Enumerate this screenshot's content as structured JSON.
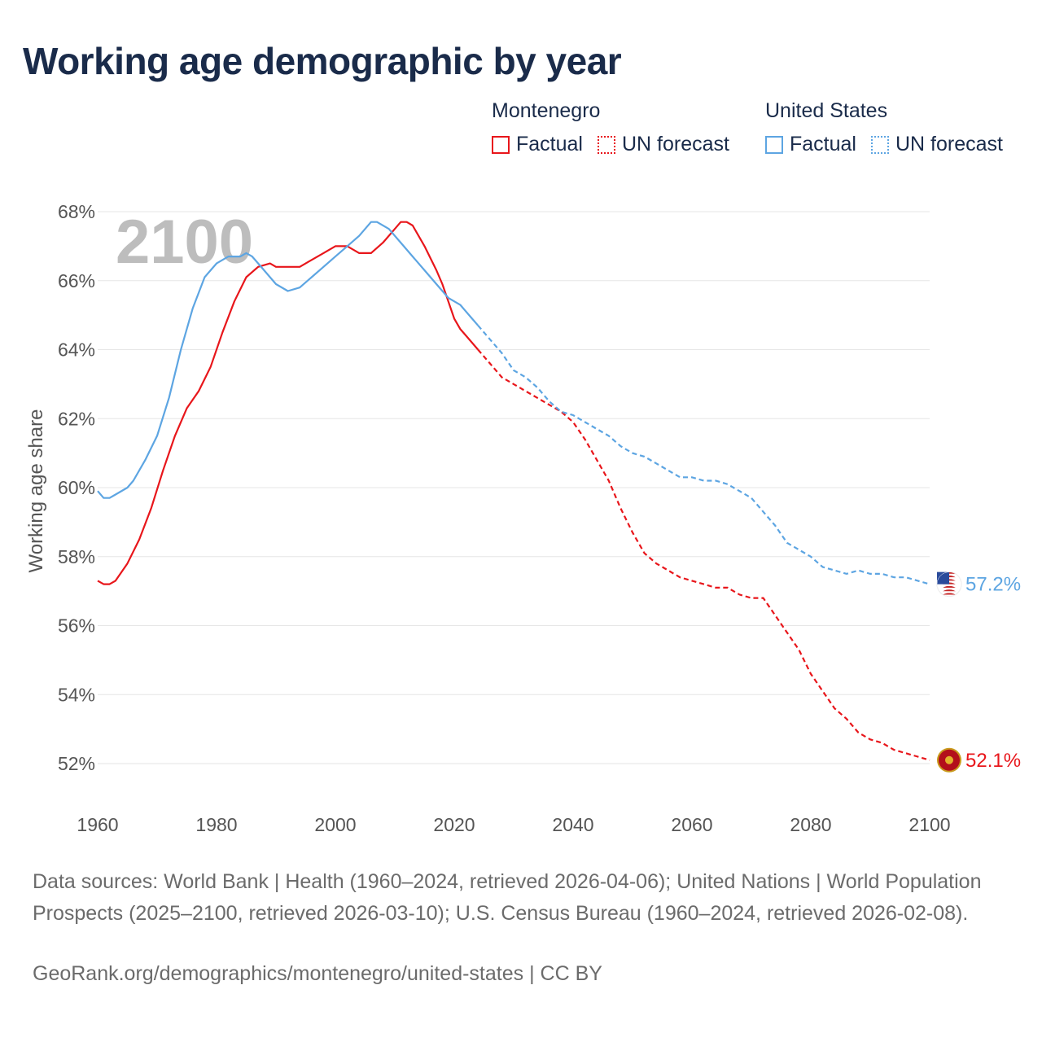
{
  "title": "Working age demographic by year",
  "legend": {
    "groups": [
      {
        "name": "Montenegro",
        "factual_label": "Factual",
        "forecast_label": "UN forecast",
        "color": "#e8161b"
      },
      {
        "name": "United States",
        "factual_label": "Factual",
        "forecast_label": "UN forecast",
        "color": "#5da5e2"
      }
    ]
  },
  "chart_data": {
    "type": "line",
    "title": "Working age demographic by year",
    "xlabel": "",
    "ylabel": "Working age share",
    "xlim": [
      1960,
      2100
    ],
    "ylim": [
      51,
      68.5
    ],
    "x_ticks": [
      1960,
      1980,
      2000,
      2020,
      2040,
      2060,
      2080,
      2100
    ],
    "x_tick_labels": [
      "1960",
      "1980",
      "2000",
      "2020",
      "2040",
      "2060",
      "2080",
      "2100"
    ],
    "y_ticks": [
      52,
      54,
      56,
      58,
      60,
      62,
      64,
      66,
      68
    ],
    "y_tick_labels": [
      "52%",
      "54%",
      "56%",
      "58%",
      "60%",
      "62%",
      "64%",
      "66%",
      "68%"
    ],
    "year_watermark": "2100",
    "grid": true,
    "series": [
      {
        "name": "Montenegro",
        "color": "#e8161b",
        "end_label": "52.1%",
        "factual": [
          [
            1960,
            57.3
          ],
          [
            1961,
            57.2
          ],
          [
            1962,
            57.2
          ],
          [
            1963,
            57.3
          ],
          [
            1965,
            57.8
          ],
          [
            1967,
            58.5
          ],
          [
            1969,
            59.4
          ],
          [
            1971,
            60.5
          ],
          [
            1973,
            61.5
          ],
          [
            1975,
            62.3
          ],
          [
            1977,
            62.8
          ],
          [
            1979,
            63.5
          ],
          [
            1981,
            64.5
          ],
          [
            1983,
            65.4
          ],
          [
            1985,
            66.1
          ],
          [
            1987,
            66.4
          ],
          [
            1989,
            66.5
          ],
          [
            1990,
            66.4
          ],
          [
            1992,
            66.4
          ],
          [
            1994,
            66.4
          ],
          [
            1996,
            66.6
          ],
          [
            1998,
            66.8
          ],
          [
            2000,
            67.0
          ],
          [
            2002,
            67.0
          ],
          [
            2004,
            66.8
          ],
          [
            2006,
            66.8
          ],
          [
            2008,
            67.1
          ],
          [
            2010,
            67.5
          ],
          [
            2011,
            67.7
          ],
          [
            2012,
            67.7
          ],
          [
            2013,
            67.6
          ],
          [
            2015,
            67.0
          ],
          [
            2017,
            66.3
          ],
          [
            2018,
            65.9
          ],
          [
            2019,
            65.4
          ],
          [
            2020,
            64.9
          ],
          [
            2021,
            64.6
          ],
          [
            2022,
            64.4
          ],
          [
            2023,
            64.2
          ],
          [
            2024,
            64.0
          ]
        ],
        "forecast": [
          [
            2024,
            64.0
          ],
          [
            2026,
            63.6
          ],
          [
            2028,
            63.2
          ],
          [
            2030,
            63.0
          ],
          [
            2032,
            62.8
          ],
          [
            2034,
            62.6
          ],
          [
            2036,
            62.4
          ],
          [
            2038,
            62.2
          ],
          [
            2040,
            61.9
          ],
          [
            2042,
            61.4
          ],
          [
            2044,
            60.8
          ],
          [
            2046,
            60.2
          ],
          [
            2048,
            59.4
          ],
          [
            2050,
            58.7
          ],
          [
            2052,
            58.1
          ],
          [
            2054,
            57.8
          ],
          [
            2056,
            57.6
          ],
          [
            2058,
            57.4
          ],
          [
            2060,
            57.3
          ],
          [
            2062,
            57.2
          ],
          [
            2064,
            57.1
          ],
          [
            2066,
            57.1
          ],
          [
            2068,
            56.9
          ],
          [
            2070,
            56.8
          ],
          [
            2072,
            56.8
          ],
          [
            2074,
            56.3
          ],
          [
            2076,
            55.8
          ],
          [
            2078,
            55.3
          ],
          [
            2080,
            54.6
          ],
          [
            2082,
            54.1
          ],
          [
            2084,
            53.6
          ],
          [
            2086,
            53.3
          ],
          [
            2088,
            52.9
          ],
          [
            2090,
            52.7
          ],
          [
            2092,
            52.6
          ],
          [
            2094,
            52.4
          ],
          [
            2096,
            52.3
          ],
          [
            2098,
            52.2
          ],
          [
            2100,
            52.1
          ]
        ]
      },
      {
        "name": "United States",
        "color": "#5da5e2",
        "end_label": "57.2%",
        "factual": [
          [
            1960,
            59.9
          ],
          [
            1961,
            59.7
          ],
          [
            1962,
            59.7
          ],
          [
            1963,
            59.8
          ],
          [
            1965,
            60.0
          ],
          [
            1966,
            60.2
          ],
          [
            1968,
            60.8
          ],
          [
            1970,
            61.5
          ],
          [
            1972,
            62.6
          ],
          [
            1974,
            64.0
          ],
          [
            1976,
            65.2
          ],
          [
            1978,
            66.1
          ],
          [
            1980,
            66.5
          ],
          [
            1982,
            66.7
          ],
          [
            1984,
            66.7
          ],
          [
            1985,
            66.8
          ],
          [
            1986,
            66.7
          ],
          [
            1988,
            66.3
          ],
          [
            1990,
            65.9
          ],
          [
            1992,
            65.7
          ],
          [
            1994,
            65.8
          ],
          [
            1996,
            66.1
          ],
          [
            1998,
            66.4
          ],
          [
            2000,
            66.7
          ],
          [
            2002,
            67.0
          ],
          [
            2004,
            67.3
          ],
          [
            2006,
            67.7
          ],
          [
            2007,
            67.7
          ],
          [
            2009,
            67.5
          ],
          [
            2011,
            67.1
          ],
          [
            2013,
            66.7
          ],
          [
            2015,
            66.3
          ],
          [
            2017,
            65.9
          ],
          [
            2019,
            65.5
          ],
          [
            2021,
            65.3
          ],
          [
            2023,
            64.9
          ],
          [
            2024,
            64.7
          ]
        ],
        "forecast": [
          [
            2024,
            64.7
          ],
          [
            2026,
            64.3
          ],
          [
            2028,
            63.9
          ],
          [
            2030,
            63.4
          ],
          [
            2032,
            63.2
          ],
          [
            2034,
            62.9
          ],
          [
            2036,
            62.5
          ],
          [
            2038,
            62.2
          ],
          [
            2040,
            62.1
          ],
          [
            2042,
            61.9
          ],
          [
            2044,
            61.7
          ],
          [
            2046,
            61.5
          ],
          [
            2048,
            61.2
          ],
          [
            2050,
            61.0
          ],
          [
            2052,
            60.9
          ],
          [
            2054,
            60.7
          ],
          [
            2056,
            60.5
          ],
          [
            2058,
            60.3
          ],
          [
            2060,
            60.3
          ],
          [
            2062,
            60.2
          ],
          [
            2064,
            60.2
          ],
          [
            2066,
            60.1
          ],
          [
            2068,
            59.9
          ],
          [
            2070,
            59.7
          ],
          [
            2072,
            59.3
          ],
          [
            2074,
            58.9
          ],
          [
            2076,
            58.4
          ],
          [
            2078,
            58.2
          ],
          [
            2080,
            58.0
          ],
          [
            2082,
            57.7
          ],
          [
            2084,
            57.6
          ],
          [
            2086,
            57.5
          ],
          [
            2088,
            57.6
          ],
          [
            2090,
            57.5
          ],
          [
            2092,
            57.5
          ],
          [
            2094,
            57.4
          ],
          [
            2096,
            57.4
          ],
          [
            2098,
            57.3
          ],
          [
            2100,
            57.2
          ]
        ]
      }
    ]
  },
  "footer": {
    "sources": "Data sources: World Bank | Health (1960–2024, retrieved 2026-04-06); United Nations | World Population Prospects (2025–2100, retrieved 2026-03-10); U.S. Census Bureau (1960–2024, retrieved 2026-02-08).",
    "credit": "GeoRank.org/demographics/montenegro/united-states | CC BY"
  }
}
